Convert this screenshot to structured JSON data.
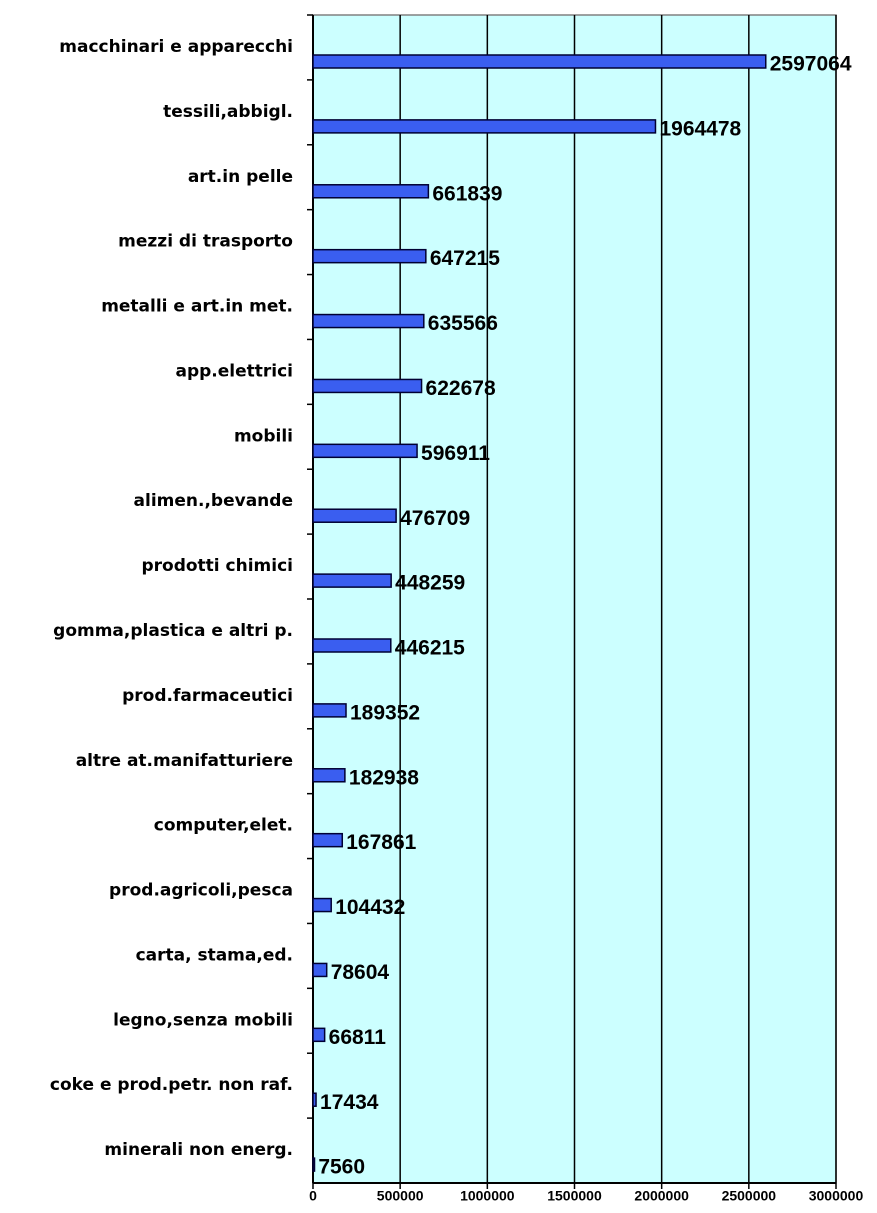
{
  "chart_data": {
    "type": "bar",
    "orientation": "horizontal",
    "categories": [
      "macchinari e apparecchi",
      "tessili,abbigl.",
      "art.in pelle",
      "mezzi di trasporto",
      "metalli e art.in met.",
      "app.elettrici",
      "mobili",
      "alimen.,bevande",
      "prodotti chimici",
      "gomma,plastica e altri p.",
      "prod.farmaceutici",
      "altre at.manifatturiere",
      "computer,elet.",
      "prod.agricoli,pesca",
      "carta, stama,ed.",
      "legno,senza mobili",
      "coke e prod.petr. non raf.",
      "minerali non energ."
    ],
    "values": [
      2597064,
      1964478,
      661839,
      647215,
      635566,
      622678,
      596911,
      476709,
      448259,
      446215,
      189352,
      182938,
      167861,
      104432,
      78604,
      66811,
      17434,
      7560
    ],
    "color": "#3a5ef0",
    "background": "#ccffff",
    "xlim": [
      0,
      3000000
    ],
    "xticks": [
      0,
      500000,
      1000000,
      1500000,
      2000000,
      2500000,
      3000000
    ],
    "grid": true
  }
}
